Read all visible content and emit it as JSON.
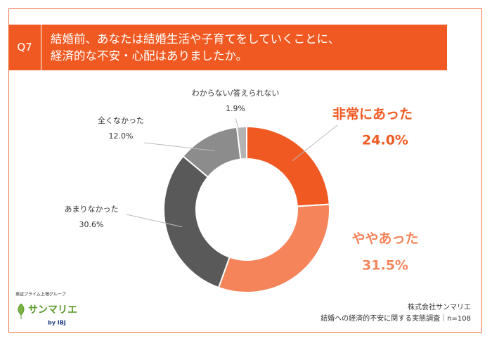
{
  "chart_data": {
    "type": "pie",
    "question": "Q7",
    "title": [
      "結婚前、あなたは結婚生活や子育てをしていくことに、",
      "経済的な不安・心配はありましたか。"
    ],
    "categories": [
      "非常にあった",
      "ややあった",
      "あまりなかった",
      "全くなかった",
      "わからない/答えられない"
    ],
    "values": [
      24.0,
      31.5,
      30.6,
      12.0,
      1.9
    ],
    "value_labels": [
      "24.0%",
      "31.5%",
      "30.6%",
      "12.0%",
      "1.9%"
    ],
    "colors": [
      "#f05a22",
      "#f5845a",
      "#595959",
      "#8c8c8c",
      "#b3b3b3"
    ],
    "donut": true
  },
  "logo": {
    "group": "東証プライム上場グループ",
    "brand": "サンマリエ",
    "by": "by IBJ"
  },
  "source": {
    "company": "株式会社サンマリエ",
    "survey": "結婚への経済的不安に関する実態調査｜n=108"
  }
}
